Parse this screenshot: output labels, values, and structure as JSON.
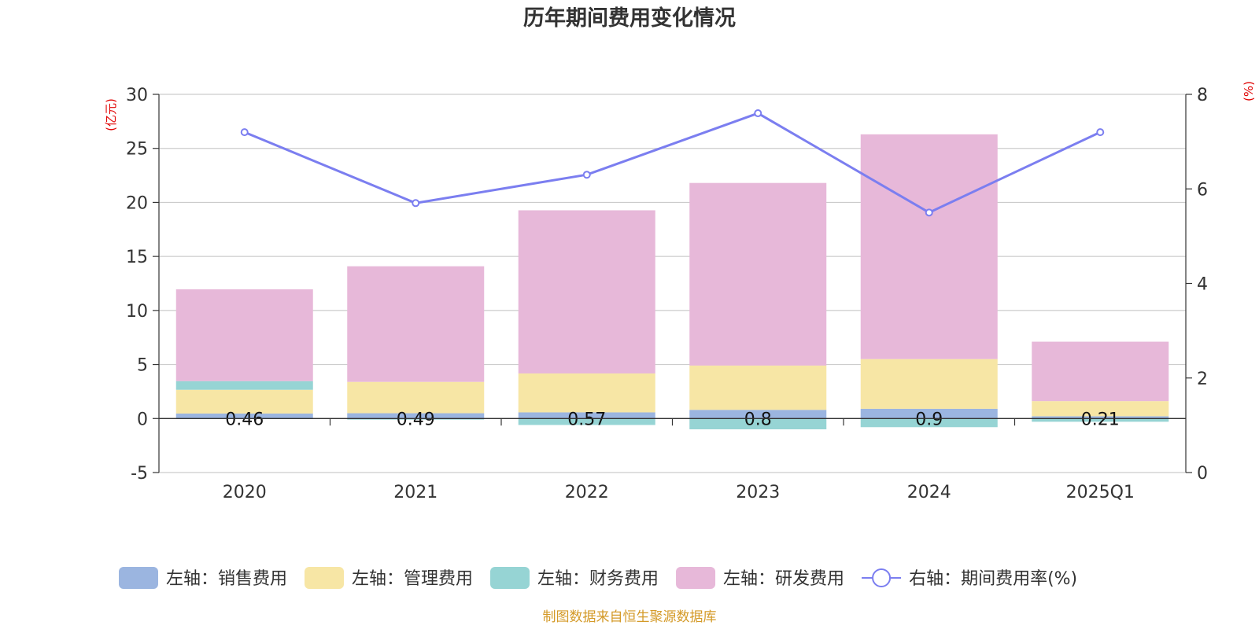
{
  "chart_data": {
    "type": "bar",
    "title": "历年期间费用变化情况",
    "categories": [
      "2020",
      "2021",
      "2022",
      "2023",
      "2024",
      "2025Q1"
    ],
    "y_left": {
      "unit": "(亿元)",
      "ylim": [
        -5,
        30
      ],
      "ticks": [
        -5,
        0,
        5,
        10,
        15,
        20,
        25,
        30
      ]
    },
    "y_right": {
      "unit": "(%)",
      "ylim": [
        0,
        8
      ],
      "ticks": [
        0,
        2,
        4,
        6,
        8
      ]
    },
    "stacked": true,
    "series": [
      {
        "name": "左轴：销售费用",
        "axis": "left",
        "type": "bar",
        "color": "#9bb5e0",
        "values": [
          0.46,
          0.49,
          0.57,
          0.8,
          0.9,
          0.21
        ],
        "labels": [
          "0.46",
          "0.49",
          "0.57",
          "0.8",
          "0.9",
          "0.21"
        ]
      },
      {
        "name": "左轴：管理费用",
        "axis": "left",
        "type": "bar",
        "color": "#f7e6a5",
        "values": [
          2.2,
          2.9,
          3.6,
          4.1,
          4.6,
          1.4
        ]
      },
      {
        "name": "左轴：财务费用",
        "axis": "left",
        "type": "bar",
        "color": "#96d4d4",
        "values": [
          0.8,
          -0.1,
          -0.6,
          -1.0,
          -0.8,
          -0.3
        ]
      },
      {
        "name": "左轴：研发费用",
        "axis": "left",
        "type": "bar",
        "color": "#e7b8d9",
        "values": [
          8.5,
          10.7,
          15.1,
          16.9,
          20.8,
          5.5
        ]
      },
      {
        "name": "右轴：期间费用率(%)",
        "axis": "right",
        "type": "line",
        "color": "#7b7ef0",
        "values": [
          7.2,
          5.7,
          6.3,
          7.6,
          5.5,
          7.2
        ]
      }
    ],
    "grid": true,
    "legend_position": "bottom"
  },
  "footer": {
    "source": "制图数据来自恒生聚源数据库"
  }
}
